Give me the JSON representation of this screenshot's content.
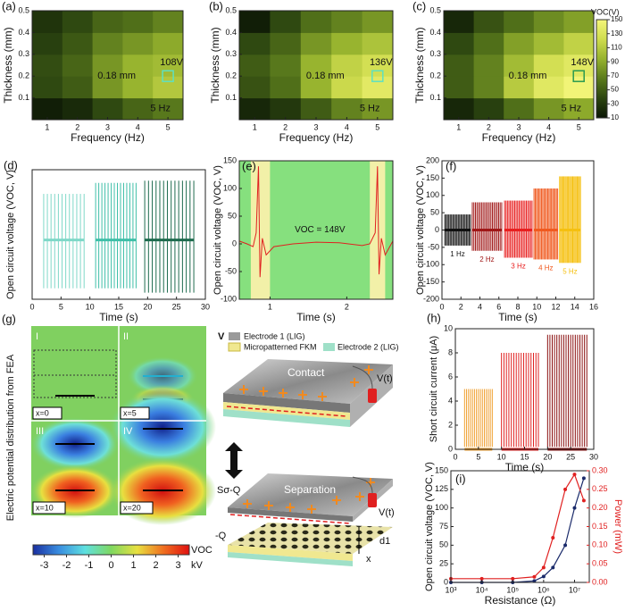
{
  "chart_data": [
    {
      "type": "heatmap",
      "label": "(a)",
      "xlabel": "Frequency (Hz)",
      "ylabel": "Thickness (mm)",
      "x": [
        1,
        2,
        3,
        4,
        5
      ],
      "y": [
        0.05,
        0.15,
        0.25,
        0.35,
        0.45
      ],
      "z": [
        [
          15,
          22,
          40,
          55,
          65
        ],
        [
          40,
          50,
          80,
          95,
          108
        ],
        [
          42,
          55,
          80,
          95,
          100
        ],
        [
          35,
          48,
          70,
          80,
          90
        ],
        [
          28,
          40,
          55,
          60,
          70
        ]
      ],
      "xlim": [
        0.5,
        5.5
      ],
      "ylim": [
        0,
        0.5
      ],
      "xticks": [
        1,
        2,
        3,
        4,
        5
      ],
      "yticks": [
        0.1,
        0.2,
        0.3,
        0.4,
        0.5
      ],
      "zlim": [
        10,
        150
      ],
      "colormap": [
        "#0b1605",
        "#2c4510",
        "#5a7a1c",
        "#96b22e",
        "#cfdc4e",
        "#f4f67a"
      ],
      "highlight": [
        5,
        0.2
      ],
      "highlight_color": "#5fe0c0",
      "value_label": "108V",
      "thickness_label": "0.18 mm",
      "freq_label": "5 Hz"
    },
    {
      "type": "heatmap",
      "label": "(b)",
      "xlabel": "Frequency (Hz)",
      "ylabel": "Thickness (mm)",
      "x": [
        1,
        2,
        3,
        4,
        5
      ],
      "y": [
        0.05,
        0.15,
        0.25,
        0.35,
        0.45
      ],
      "z": [
        [
          20,
          30,
          50,
          70,
          80
        ],
        [
          45,
          60,
          95,
          120,
          136
        ],
        [
          50,
          65,
          95,
          115,
          125
        ],
        [
          40,
          55,
          80,
          95,
          105
        ],
        [
          15,
          40,
          60,
          70,
          80
        ]
      ],
      "xlim": [
        0.5,
        5.5
      ],
      "ylim": [
        0,
        0.5
      ],
      "xticks": [
        1,
        2,
        3,
        4,
        5
      ],
      "yticks": [
        0.1,
        0.2,
        0.3,
        0.4,
        0.5
      ],
      "zlim": [
        10,
        150
      ],
      "colormap": [
        "#0b1605",
        "#2c4510",
        "#5a7a1c",
        "#96b22e",
        "#cfdc4e",
        "#f4f67a"
      ],
      "highlight": [
        5,
        0.2
      ],
      "highlight_color": "#5fe0c0",
      "value_label": "136V",
      "thickness_label": "0.18 mm",
      "freq_label": "5 Hz"
    },
    {
      "type": "heatmap",
      "label": "(c)",
      "xlabel": "Frequency (Hz)",
      "ylabel": "Thickness (mm)",
      "x": [
        1,
        2,
        3,
        4,
        5
      ],
      "y": [
        0.05,
        0.15,
        0.25,
        0.35,
        0.45
      ],
      "z": [
        [
          20,
          35,
          60,
          80,
          90
        ],
        [
          50,
          70,
          110,
          135,
          148
        ],
        [
          50,
          70,
          100,
          125,
          135
        ],
        [
          40,
          60,
          85,
          100,
          115
        ],
        [
          20,
          45,
          60,
          75,
          85
        ]
      ],
      "xlim": [
        0.5,
        5.5
      ],
      "ylim": [
        0,
        0.5
      ],
      "xticks": [
        1,
        2,
        3,
        4,
        5
      ],
      "yticks": [
        0.1,
        0.2,
        0.3,
        0.4,
        0.5
      ],
      "zlim": [
        10,
        150
      ],
      "colormap": [
        "#0b1605",
        "#2c4510",
        "#5a7a1c",
        "#96b22e",
        "#cfdc4e",
        "#f4f67a"
      ],
      "highlight": [
        5,
        0.2
      ],
      "highlight_color": "#2a9a50",
      "value_label": "148V",
      "thickness_label": "0.18 mm",
      "freq_label": "5 Hz",
      "colorbar": {
        "label": "VOC(V)",
        "ticks": [
          10,
          30,
          50,
          70,
          90,
          110,
          130,
          150
        ]
      }
    },
    {
      "type": "spikes",
      "label": "(d)",
      "xlabel": "Time (s)",
      "ylabel": "Open circuit voltage (VOC, V)",
      "xlim": [
        0,
        30
      ],
      "ylim": [
        -135,
        160
      ],
      "xticks": [
        0,
        5,
        10,
        15,
        20,
        25,
        30
      ],
      "bursts": [
        {
          "start": 2,
          "end": 9,
          "high": 105,
          "low": -110,
          "count": 12,
          "color": "#7fd8c8"
        },
        {
          "start": 11,
          "end": 18,
          "high": 130,
          "low": -110,
          "count": 14,
          "color": "#3fbfa8"
        },
        {
          "start": 19.5,
          "end": 28,
          "high": 135,
          "low": -120,
          "count": 14,
          "color": "#1e6b4e"
        }
      ]
    },
    {
      "type": "line",
      "label": "(e)",
      "xlabel": "Time (s)",
      "ylabel": "Open circuit voltage (VOC, V)",
      "xlim": [
        0.6,
        2.6
      ],
      "ylim": [
        -100,
        150
      ],
      "xticks": [
        1,
        2
      ],
      "yticks": [
        -100,
        -50,
        0,
        50,
        100,
        150
      ],
      "background": "#86e07e",
      "band_color": "#f2f0a8",
      "bands": [
        [
          0.75,
          1.0
        ],
        [
          2.3,
          2.5
        ]
      ],
      "x": [
        0.6,
        0.7,
        0.78,
        0.82,
        0.85,
        0.87,
        0.9,
        0.95,
        1.05,
        1.3,
        1.6,
        1.9,
        2.2,
        2.3,
        2.37,
        2.4,
        2.42,
        2.45,
        2.5,
        2.6
      ],
      "values": [
        5,
        0,
        -5,
        20,
        140,
        -60,
        10,
        -20,
        -5,
        0,
        3,
        2,
        -3,
        0,
        20,
        140,
        -55,
        10,
        -20,
        5
      ],
      "color": "#e02020",
      "annotation": "VOC = 148V"
    },
    {
      "type": "spikes",
      "label": "(f)",
      "xlabel": "Time (s)",
      "ylabel": "Open circuit voltage (VOC, V)",
      "xlim": [
        0,
        16
      ],
      "ylim": [
        -200,
        200
      ],
      "xticks": [
        0,
        2,
        4,
        6,
        8,
        10,
        12,
        14,
        16
      ],
      "yticks": [
        -200,
        -150,
        -100,
        -50,
        0,
        50,
        100,
        150,
        200
      ],
      "bursts": [
        {
          "start": 0.3,
          "end": 3,
          "high": 45,
          "low": -45,
          "count": 20,
          "color": "#111111",
          "label": "1 Hz"
        },
        {
          "start": 3.2,
          "end": 6.3,
          "high": 80,
          "low": -60,
          "count": 20,
          "color": "#a01818",
          "label": "2 Hz"
        },
        {
          "start": 6.6,
          "end": 9.5,
          "high": 85,
          "low": -80,
          "count": 20,
          "color": "#e82020",
          "label": "3 Hz"
        },
        {
          "start": 9.7,
          "end": 12.2,
          "high": 120,
          "low": -85,
          "count": 20,
          "color": "#f05a20",
          "label": "4 Hz"
        },
        {
          "start": 12.4,
          "end": 14.6,
          "high": 155,
          "low": -95,
          "count": 20,
          "color": "#f5c010",
          "label": "5 Hz"
        }
      ]
    },
    {
      "type": "spikes",
      "label": "(h)",
      "xlabel": "Time (s)",
      "ylabel": "Short circuit current (μA)",
      "xlim": [
        0,
        30
      ],
      "ylim": [
        0,
        10
      ],
      "xticks": [
        0,
        5,
        10,
        15,
        20,
        25,
        30
      ],
      "yticks": [
        0,
        2,
        4,
        6,
        8,
        10
      ],
      "bursts": [
        {
          "start": 2,
          "end": 8,
          "high": 5,
          "low": 0.2,
          "count": 15,
          "color": "#f0a030"
        },
        {
          "start": 10,
          "end": 18,
          "high": 8,
          "low": 0.2,
          "count": 16,
          "color": "#e02020"
        },
        {
          "start": 20,
          "end": 28.5,
          "high": 9.5,
          "low": 0.2,
          "count": 18,
          "color": "#8b1010"
        }
      ]
    },
    {
      "type": "line",
      "label": "(i)",
      "xlabel": "Resistance (Ω)",
      "ylabel": "Open circuit voltage (VOC, V)",
      "y2label": "Power (mW)",
      "xlog": true,
      "xlim": [
        1000,
        30000000
      ],
      "xticks": [
        {
          "value": 1000,
          "label": "10³"
        },
        {
          "value": 10000,
          "label": "10⁴"
        },
        {
          "value": 100000,
          "label": "10⁵"
        },
        {
          "value": 1000000,
          "label": "10⁶"
        },
        {
          "value": 10000000,
          "label": "10⁷"
        }
      ],
      "ylim": [
        0,
        150
      ],
      "yticks": [
        0,
        25,
        50,
        75,
        100,
        125,
        150
      ],
      "y2lim": [
        0,
        0.3
      ],
      "y2ticks": [
        {
          "value": 0,
          "label": "0.00"
        },
        {
          "value": 0.05,
          "label": "0.05"
        },
        {
          "value": 0.1,
          "label": "0.10"
        },
        {
          "value": 0.15,
          "label": "0.15"
        },
        {
          "value": 0.2,
          "label": "0.20"
        },
        {
          "value": 0.25,
          "label": "0.25"
        },
        {
          "value": 0.3,
          "label": "0.30"
        }
      ],
      "y2color": "#e02020",
      "x": [
        1000,
        10000,
        100000,
        500000,
        1000000,
        2000000,
        5000000,
        10000000,
        20000000
      ],
      "series": [
        {
          "color": "#1a2a6a",
          "values": [
            0,
            0,
            0,
            2,
            8,
            20,
            50,
            100,
            140
          ]
        },
        {
          "color": "#e02020",
          "axis": "y2",
          "values": [
            0.01,
            0.01,
            0.01,
            0.015,
            0.04,
            0.12,
            0.25,
            0.29,
            0.22
          ]
        }
      ]
    }
  ],
  "figure_g": {
    "label": "(g)",
    "side_label": "Electric potential distribution from FEA",
    "panels": [
      {
        "roman": "I",
        "pos": "x=0"
      },
      {
        "roman": "II",
        "pos": "x=5"
      },
      {
        "roman": "III",
        "pos": "x=10"
      },
      {
        "roman": "IV",
        "pos": "x=20"
      }
    ],
    "colorbar": {
      "ticks": [
        -3,
        -2,
        -1,
        0,
        1,
        2,
        3
      ],
      "lim": [
        -3.5,
        3.5
      ],
      "unit": "kV",
      "label": "VOC",
      "colors": [
        "#1a2fa0",
        "#3a8ee0",
        "#5ee0e0",
        "#7fd860",
        "#e8e040",
        "#f07020",
        "#e01010"
      ]
    },
    "roman5": "V",
    "legend": [
      "Electrode 1 (LIG)",
      "Micropatterned FKM",
      "Electrode 2 (LIG)"
    ],
    "contact": "Contact",
    "separation": "Separation",
    "vt": "V(t)",
    "sq": "Sσ-Q",
    "negq": "-Q",
    "d1": "d1",
    "xvar": "x"
  }
}
